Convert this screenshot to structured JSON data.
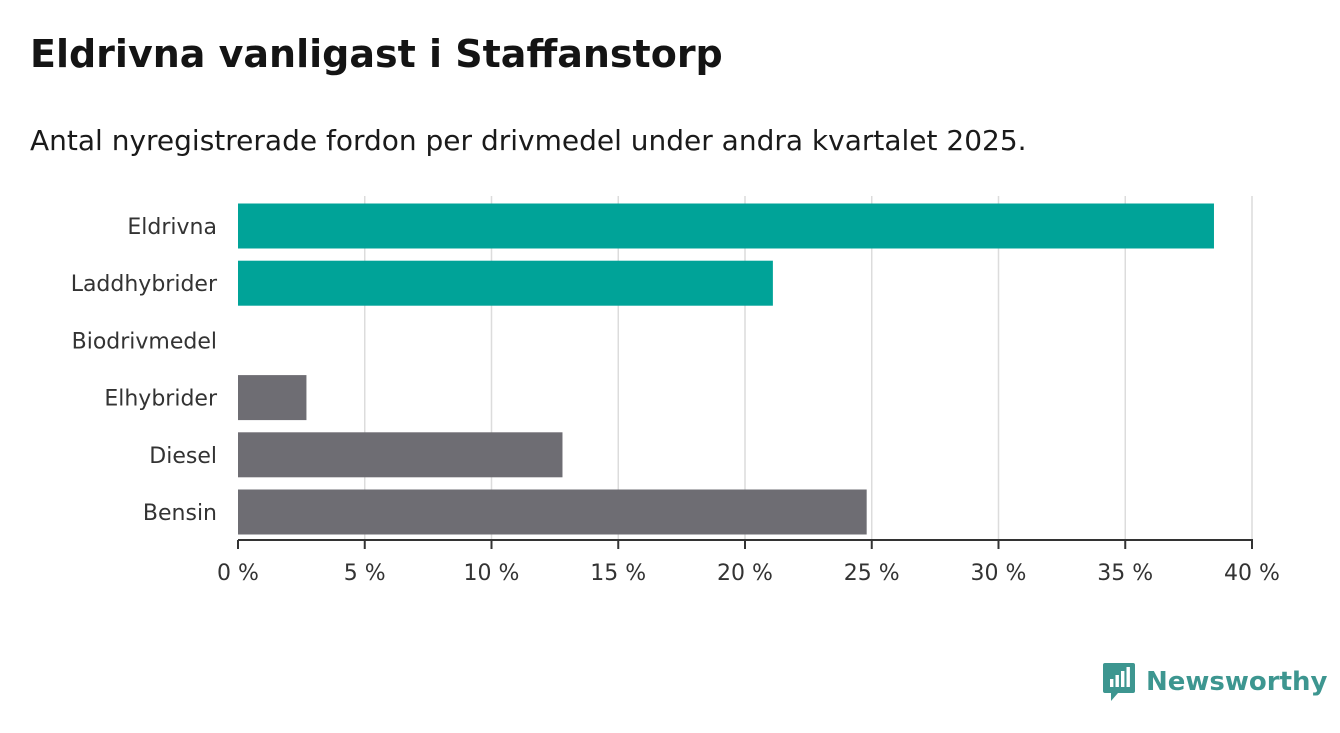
{
  "title": "Eldrivna vanligast i Staffanstorp",
  "subtitle": "Antal nyregistrerade fordon per drivmedel under andra kvartalet 2025.",
  "brand": {
    "name": "Newsworthy",
    "icon": "newsworthy-logo-icon",
    "color": "#3d9690"
  },
  "chart_data": {
    "type": "bar",
    "orientation": "horizontal",
    "categories": [
      "Eldrivna",
      "Laddhybrider",
      "Biodrivmedel",
      "Elhybrider",
      "Diesel",
      "Bensin"
    ],
    "values": [
      38.5,
      21.1,
      0,
      2.7,
      12.8,
      24.8
    ],
    "colors": [
      "#00a398",
      "#00a398",
      "#6e6d73",
      "#6e6d73",
      "#6e6d73",
      "#6e6d73"
    ],
    "xlim": [
      0,
      40
    ],
    "ticks": [
      0,
      5,
      10,
      15,
      20,
      25,
      30,
      35,
      40
    ],
    "tick_labels": [
      "0 %",
      "5 %",
      "10 %",
      "15 %",
      "20 %",
      "25 %",
      "30 %",
      "35 %",
      "40 %"
    ],
    "grid": "vertical"
  }
}
